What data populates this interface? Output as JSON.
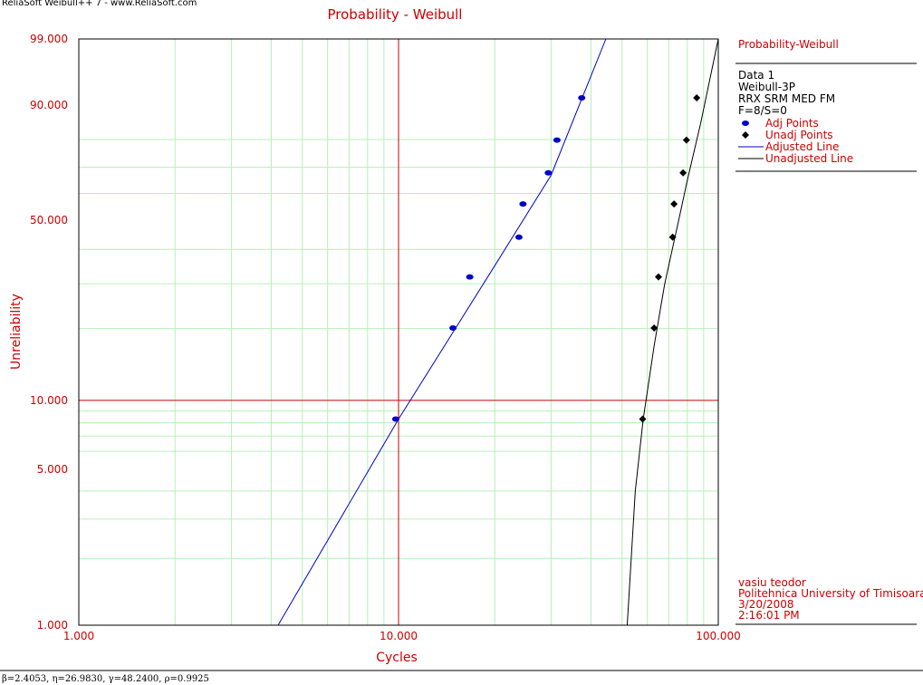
{
  "watermark": "ReliaSoft Weibull++ 7 - www.ReliaSoft.com",
  "parameters_text": "β=2.4053, η=26.9830, γ=48.2400, ρ=0.9925",
  "legend": {
    "title": "Probability-Weibull",
    "lines": [
      "Data 1",
      "Weibull-3P",
      "RRX SRM MED FM",
      "F=8/S=0"
    ],
    "entries": [
      "Adj Points",
      "Unadj Points",
      "Adjusted Line",
      "Unadjusted Line"
    ]
  },
  "info": {
    "lines": [
      "vasiu teodor",
      "Politehnica University of Timisoara",
      "3/20/2008",
      "2:16:01 PM"
    ]
  },
  "colors": {
    "accent_text": "#cc0000",
    "major_grid": "#cc0000",
    "minor_grid": "#b7f0b7",
    "adjusted": "#0000cc",
    "unadjusted": "#000000"
  },
  "chart_data": {
    "type": "scatter",
    "title": "Probability - Weibull",
    "xlabel": "Cycles",
    "ylabel": "Unreliability",
    "x_scale": "log",
    "y_scale": "weibull",
    "xlim": [
      1,
      100
    ],
    "ylim": [
      1,
      99
    ],
    "x_ticks": [
      1,
      10,
      100
    ],
    "x_tick_labels": [
      "1.000",
      "10.000",
      "100.000"
    ],
    "y_ticks": [
      1,
      5,
      10,
      50,
      90,
      99
    ],
    "y_tick_labels": [
      "1.000",
      "5.000",
      "10.000",
      "50.000",
      "90.000",
      "99.000"
    ],
    "series": [
      {
        "name": "Adj Points",
        "marker": "circle",
        "color": "#0000cc",
        "points": [
          [
            9.8,
            8.3
          ],
          [
            14.8,
            20.1
          ],
          [
            16.7,
            31.8
          ],
          [
            23.8,
            44.0
          ],
          [
            24.5,
            56.0
          ],
          [
            29.4,
            67.9
          ],
          [
            31.3,
            79.8
          ],
          [
            37.4,
            91.7
          ]
        ]
      },
      {
        "name": "Unadj Points",
        "marker": "diamond",
        "color": "#000000",
        "points": [
          [
            58.0,
            8.3
          ],
          [
            63.0,
            20.1
          ],
          [
            65.0,
            31.8
          ],
          [
            72.0,
            44.0
          ],
          [
            72.7,
            56.0
          ],
          [
            77.6,
            67.9
          ],
          [
            79.5,
            79.8
          ],
          [
            85.6,
            91.7
          ]
        ]
      },
      {
        "name": "Adjusted Line",
        "type": "line",
        "color": "#0000cc",
        "points": [
          [
            4.2,
            1.0
          ],
          [
            10.0,
            8.3
          ],
          [
            20.0,
            35.0
          ],
          [
            30.0,
            67.0
          ],
          [
            44.5,
            99.0
          ]
        ]
      },
      {
        "name": "Unadjusted Line",
        "type": "line",
        "color": "#000000",
        "points": [
          [
            51.9,
            1.0
          ],
          [
            55.0,
            4.0
          ],
          [
            58.24,
            8.3
          ],
          [
            63.0,
            17.0
          ],
          [
            68.0,
            30.0
          ],
          [
            75.2,
            50.0
          ],
          [
            80.0,
            65.0
          ],
          [
            88.0,
            85.0
          ],
          [
            100.0,
            99.0
          ]
        ]
      }
    ]
  }
}
